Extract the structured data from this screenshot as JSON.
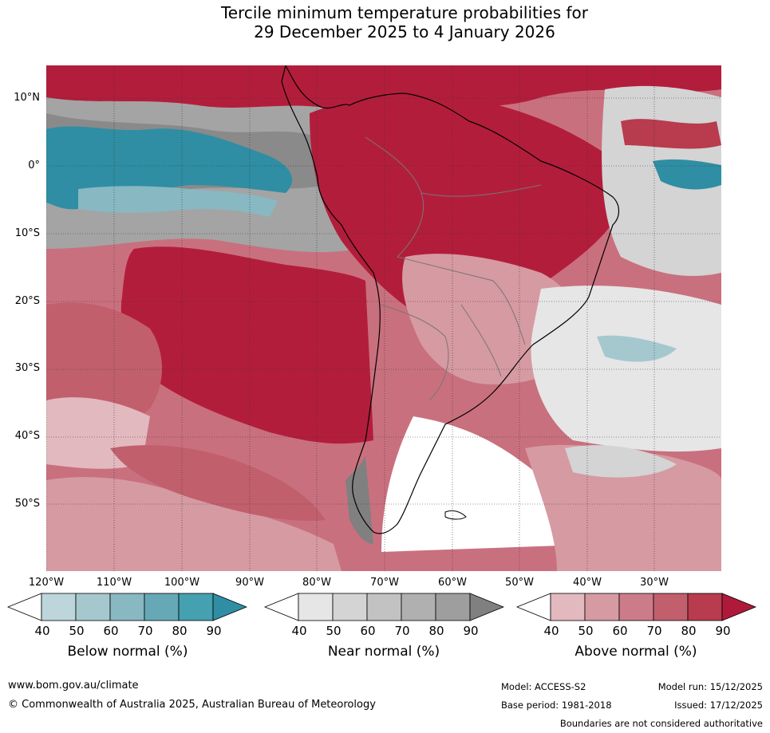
{
  "title": {
    "line1": "Tercile minimum temperature probabilities for",
    "line2": "29 December 2025 to 4 January 2026"
  },
  "lat_labels": [
    "10°N",
    "0°",
    "10°S",
    "20°S",
    "30°S",
    "40°S",
    "50°S"
  ],
  "lon_labels": [
    "120°W",
    "110°W",
    "100°W",
    "90°W",
    "80°W",
    "70°W",
    "60°W",
    "50°W",
    "40°W",
    "30°W"
  ],
  "legends": {
    "below": {
      "label": "Below normal (%)",
      "ticks": [
        "40",
        "50",
        "60",
        "70",
        "80",
        "90"
      ],
      "colors": [
        "#ffffff",
        "#bcd6dc",
        "#a5c8cf",
        "#88b8c2",
        "#66a8b6",
        "#45a0b0",
        "#2f8ea3"
      ]
    },
    "near": {
      "label": "Near normal (%)",
      "ticks": [
        "40",
        "50",
        "60",
        "70",
        "80",
        "90"
      ],
      "colors": [
        "#ffffff",
        "#e6e6e6",
        "#d4d4d4",
        "#c2c2c2",
        "#b0b0b0",
        "#9e9e9e",
        "#808080"
      ]
    },
    "above": {
      "label": "Above normal (%)",
      "ticks": [
        "40",
        "50",
        "60",
        "70",
        "80",
        "90"
      ],
      "colors": [
        "#ffffff",
        "#e2b9be",
        "#d69aa2",
        "#cc7c88",
        "#c25f6d",
        "#b83b4e",
        "#b01a3a"
      ]
    }
  },
  "footer": {
    "website": "www.bom.gov.au/climate",
    "copyright": "© Commonwealth of Australia 2025, Australian Bureau of Meteorology",
    "model": "Model: ACCESS-S2",
    "base_period": "Base period: 1981-2018",
    "model_run": "Model run: 15/12/2025",
    "issued": "Issued: 17/12/2025",
    "disclaimer": "Boundaries are not considered authoritative"
  }
}
